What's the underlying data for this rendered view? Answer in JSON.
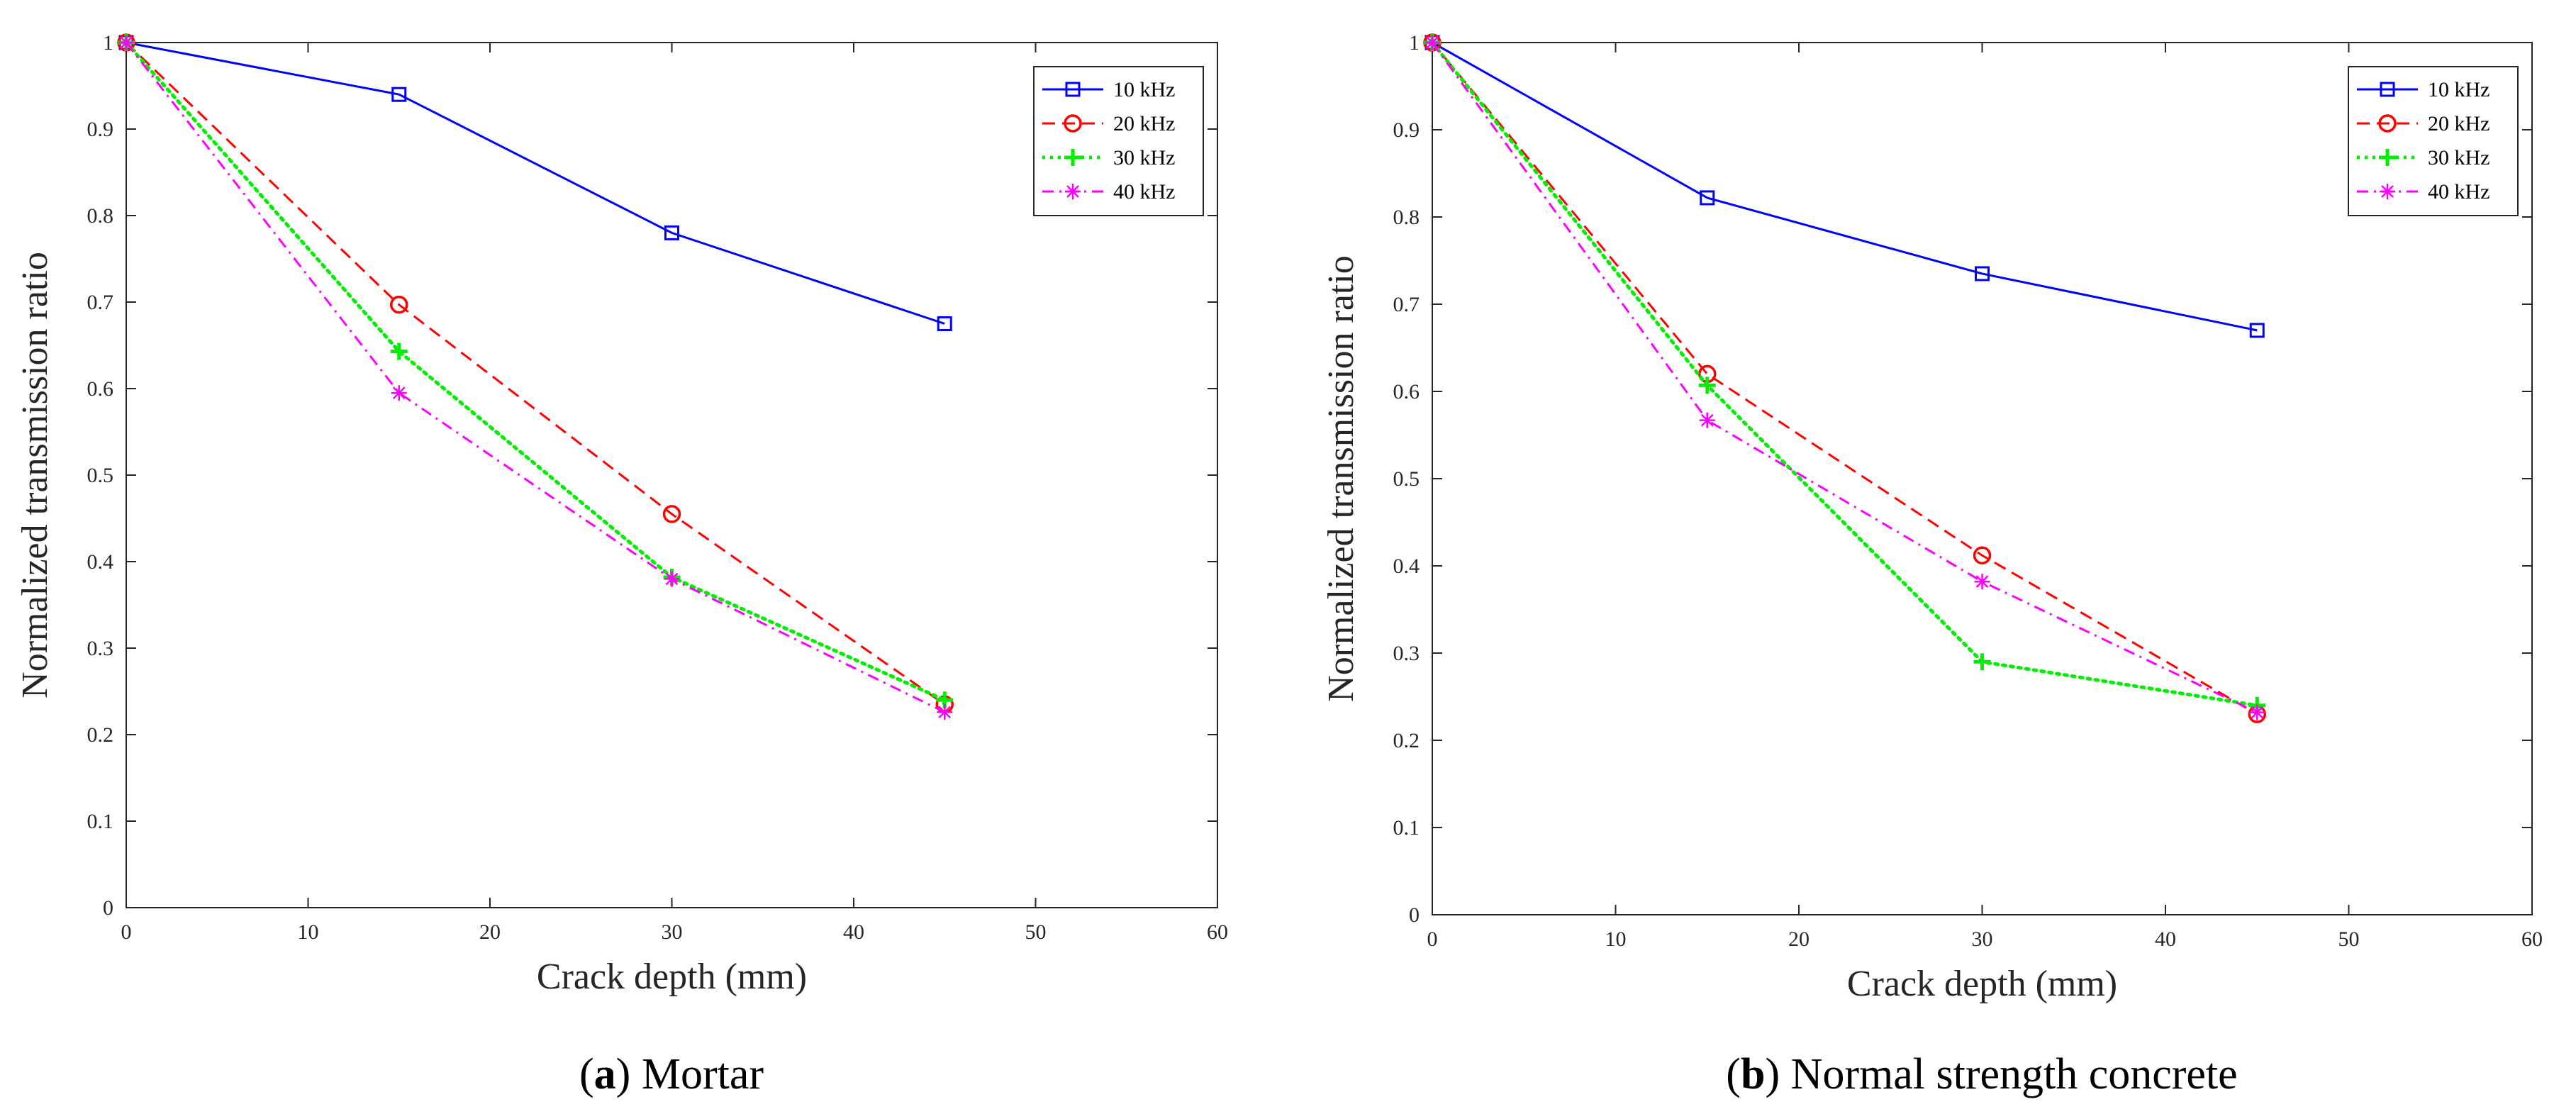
{
  "chart_data": [
    {
      "type": "line",
      "caption_letter": "a",
      "caption_text": " Mortar",
      "xlabel": "Crack depth (mm)",
      "ylabel": "Normalized transmission ratio",
      "xlim": [
        0,
        60
      ],
      "ylim": [
        0,
        1
      ],
      "xticks": [
        "0",
        "10",
        "20",
        "30",
        "40",
        "50",
        "60"
      ],
      "yticks": [
        "0",
        "0.1",
        "0.2",
        "0.3",
        "0.4",
        "0.5",
        "0.6",
        "0.7",
        "0.8",
        "0.9",
        "1"
      ],
      "legend_position": "top-right",
      "x": [
        0,
        15,
        30,
        45
      ],
      "series": [
        {
          "name": "10 kHz",
          "values": [
            1.0,
            0.94,
            0.78,
            0.675
          ],
          "color": "#0000ff",
          "dash": "solid",
          "marker": "square"
        },
        {
          "name": "20 kHz",
          "values": [
            1.0,
            0.697,
            0.455,
            0.235
          ],
          "color": "#ff0000",
          "dash": "dashed",
          "marker": "circle"
        },
        {
          "name": "30 kHz",
          "values": [
            1.0,
            0.643,
            0.382,
            0.24
          ],
          "color": "#00ee00",
          "dash": "dotted",
          "marker": "plus"
        },
        {
          "name": "40 kHz",
          "values": [
            1.0,
            0.595,
            0.38,
            0.226
          ],
          "color": "#ff00ff",
          "dash": "dashdot",
          "marker": "star"
        }
      ]
    },
    {
      "type": "line",
      "caption_letter": "b",
      "caption_text": " Normal strength concrete",
      "xlabel": "Crack depth (mm)",
      "ylabel": "Normalized transmission ratio",
      "xlim": [
        0,
        60
      ],
      "ylim": [
        0,
        1
      ],
      "xticks": [
        "0",
        "10",
        "20",
        "30",
        "40",
        "50",
        "60"
      ],
      "yticks": [
        "0",
        "0.1",
        "0.2",
        "0.3",
        "0.4",
        "0.5",
        "0.6",
        "0.7",
        "0.8",
        "0.9",
        "1"
      ],
      "legend_position": "top-right",
      "x": [
        0,
        15,
        30,
        45
      ],
      "series": [
        {
          "name": "10 kHz",
          "values": [
            1.0,
            0.822,
            0.735,
            0.67
          ],
          "color": "#0000ff",
          "dash": "solid",
          "marker": "square"
        },
        {
          "name": "20 kHz",
          "values": [
            1.0,
            0.62,
            0.412,
            0.23
          ],
          "color": "#ff0000",
          "dash": "dashed",
          "marker": "circle"
        },
        {
          "name": "30 kHz",
          "values": [
            1.0,
            0.607,
            0.29,
            0.24
          ],
          "color": "#00ee00",
          "dash": "dotted",
          "marker": "plus"
        },
        {
          "name": "40 kHz",
          "values": [
            1.0,
            0.567,
            0.382,
            0.232
          ],
          "color": "#ff00ff",
          "dash": "dashdot",
          "marker": "star"
        }
      ]
    }
  ]
}
